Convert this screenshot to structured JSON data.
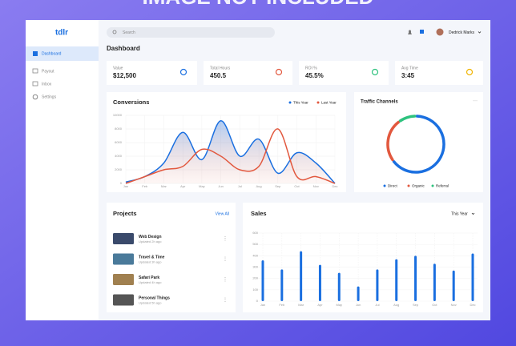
{
  "watermark": "IMAGE NOT INCLUDED",
  "sidebar": {
    "logo": "tdlr",
    "items": [
      "Dashboard",
      "Payout",
      "Inbox",
      "Settings"
    ]
  },
  "topbar": {
    "search_placeholder": "Search",
    "user": "Dedrick Marks"
  },
  "page_title": "Dashboard",
  "stats": [
    {
      "label": "Value",
      "value": "$12,500"
    },
    {
      "label": "Total Hours",
      "value": "450.5"
    },
    {
      "label": "ROI %",
      "value": "45.5%"
    },
    {
      "label": "Avg Time",
      "value": "3:45"
    }
  ],
  "conversions": {
    "type": "line",
    "title": "Conversions",
    "categories": [
      "Jan",
      "Feb",
      "Mar",
      "Apr",
      "May",
      "Jun",
      "Jul",
      "Aug",
      "Sep",
      "Oct",
      "Nov",
      "Dec"
    ],
    "series": [
      {
        "name": "This Year",
        "color": "#1a6fe0",
        "values": [
          200,
          1000,
          3000,
          7500,
          3500,
          9200,
          4000,
          6500,
          1500,
          4500,
          3000,
          0
        ]
      },
      {
        "name": "Last Year",
        "color": "#e2583e",
        "values": [
          0,
          1000,
          2000,
          2500,
          5000,
          4000,
          2000,
          2500,
          8000,
          1000,
          1000,
          0
        ]
      }
    ],
    "ylim": [
      0,
      10000
    ],
    "yticks": [
      0,
      2000,
      4000,
      6000,
      8000,
      10000
    ]
  },
  "traffic": {
    "type": "pie",
    "title": "Traffic Channels",
    "categories": [
      "Direct",
      "Organic",
      "Referral"
    ],
    "values": [
      65,
      25,
      10
    ],
    "colors": [
      "#1a6fe0",
      "#e2583e",
      "#2ec27e"
    ]
  },
  "projects": {
    "title": "Projects",
    "action": "View All",
    "items": [
      {
        "name": "Web Design",
        "updated": "Updated 2h ago"
      },
      {
        "name": "Travel & Time",
        "updated": "Updated 3h ago"
      },
      {
        "name": "Safari Park",
        "updated": "Updated 4h ago"
      },
      {
        "name": "Personal Things",
        "updated": "Updated 5h ago"
      }
    ]
  },
  "sales": {
    "type": "bar",
    "title": "Sales",
    "filter": "This Year",
    "categories": [
      "Jan",
      "Feb",
      "Mar",
      "Apr",
      "May",
      "Jun",
      "Jul",
      "Aug",
      "Sep",
      "Oct",
      "Nov",
      "Dec"
    ],
    "values": [
      360,
      280,
      440,
      320,
      250,
      130,
      280,
      370,
      400,
      330,
      270,
      420
    ],
    "color": "#1a6fe0",
    "ylim": [
      0,
      600
    ],
    "yticks": [
      0,
      100,
      200,
      300,
      400,
      500,
      600
    ]
  }
}
